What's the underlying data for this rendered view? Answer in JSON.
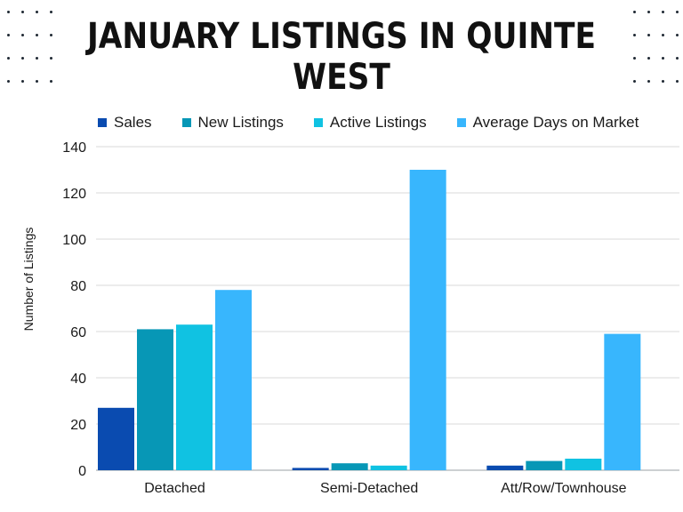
{
  "title": "JANUARY LISTINGS IN QUINTE WEST",
  "chart_data": {
    "type": "bar",
    "categories": [
      "Detached",
      "Semi-Detached",
      "Att/Row/Townhouse"
    ],
    "series": [
      {
        "name": "Sales",
        "values": [
          27,
          1,
          2
        ],
        "color": "#0a4bb0"
      },
      {
        "name": "New Listings",
        "values": [
          61,
          3,
          4
        ],
        "color": "#0797b6"
      },
      {
        "name": "Active Listings",
        "values": [
          63,
          2,
          5
        ],
        "color": "#10c2e2"
      },
      {
        "name": "Average Days on Market",
        "values": [
          78,
          130,
          59
        ],
        "color": "#38b6fd"
      }
    ],
    "xlabel": "",
    "ylabel": "Number of Listings",
    "ylim": [
      0,
      140
    ],
    "yticks": [
      0,
      20,
      40,
      60,
      80,
      100,
      120,
      140
    ],
    "grid": true,
    "legend_position": "top"
  }
}
